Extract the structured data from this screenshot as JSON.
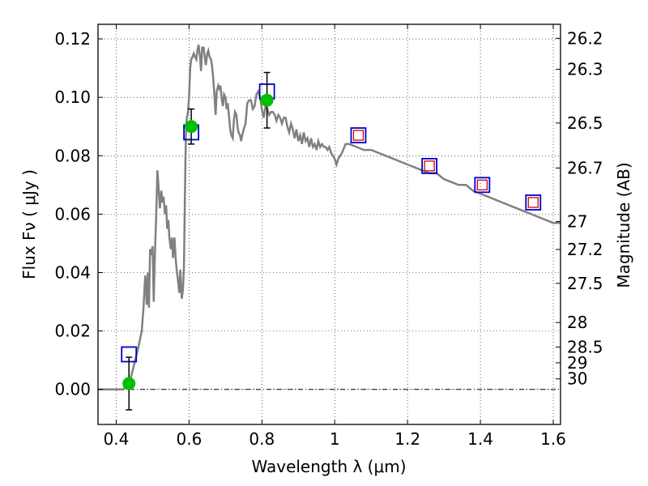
{
  "chart_data": {
    "type": "scatter",
    "xlabel": "Wavelength  λ (μm)",
    "ylabel": "Flux  Fν  ( μJy )",
    "ylabel_right": "Magnitude (AB)",
    "xlim": [
      0.35,
      1.62
    ],
    "ylim": [
      -0.012,
      0.125
    ],
    "grid": true,
    "x_ticks": [
      {
        "value": 0.4,
        "label": "0.4"
      },
      {
        "value": 0.6,
        "label": "0.6"
      },
      {
        "value": 0.8,
        "label": "0.8"
      },
      {
        "value": 1.0,
        "label": "1"
      },
      {
        "value": 1.2,
        "label": "1.2"
      },
      {
        "value": 1.4,
        "label": "1.4"
      },
      {
        "value": 1.6,
        "label": "1.6"
      }
    ],
    "y_ticks": [
      {
        "value": 0.0,
        "label": "0.00"
      },
      {
        "value": 0.02,
        "label": "0.02"
      },
      {
        "value": 0.04,
        "label": "0.04"
      },
      {
        "value": 0.06,
        "label": "0.06"
      },
      {
        "value": 0.08,
        "label": "0.08"
      },
      {
        "value": 0.1,
        "label": "0.10"
      },
      {
        "value": 0.12,
        "label": "0.12"
      }
    ],
    "right_ticks": [
      {
        "label": "26.2",
        "flux": 0.1202
      },
      {
        "label": "26.3",
        "flux": 0.1096
      },
      {
        "label": "26.5",
        "flux": 0.0912
      },
      {
        "label": "26.7",
        "flux": 0.0758
      },
      {
        "label": "27",
        "flux": 0.0575
      },
      {
        "label": "27.2",
        "flux": 0.0479
      },
      {
        "label": "27.5",
        "flux": 0.0363
      },
      {
        "label": "28",
        "flux": 0.0229
      },
      {
        "label": "28.5",
        "flux": 0.0145
      },
      {
        "label": "29",
        "flux": 0.0091
      },
      {
        "label": "30",
        "flux": 0.0036
      }
    ],
    "series": [
      {
        "style": "model-spectrum",
        "color": "#808080",
        "x": [
          0.35,
          0.42,
          0.44,
          0.45,
          0.46,
          0.47,
          0.475,
          0.478,
          0.48,
          0.484,
          0.487,
          0.49,
          0.493,
          0.496,
          0.5,
          0.503,
          0.506,
          0.51,
          0.513,
          0.516,
          0.52,
          0.524,
          0.527,
          0.53,
          0.534,
          0.537,
          0.54,
          0.543,
          0.546,
          0.55,
          0.553,
          0.556,
          0.56,
          0.563,
          0.566,
          0.57,
          0.573,
          0.576,
          0.58,
          0.583,
          0.586,
          0.59,
          0.592,
          0.594,
          0.597,
          0.6,
          0.603,
          0.606,
          0.61,
          0.613,
          0.616,
          0.62,
          0.623,
          0.626,
          0.63,
          0.633,
          0.636,
          0.64,
          0.643,
          0.646,
          0.65,
          0.653,
          0.656,
          0.66,
          0.663,
          0.666,
          0.67,
          0.673,
          0.676,
          0.68,
          0.683,
          0.686,
          0.69,
          0.693,
          0.696,
          0.7,
          0.703,
          0.706,
          0.71,
          0.713,
          0.716,
          0.72,
          0.723,
          0.726,
          0.73,
          0.733,
          0.736,
          0.74,
          0.743,
          0.746,
          0.75,
          0.755,
          0.76,
          0.765,
          0.77,
          0.775,
          0.78,
          0.785,
          0.79,
          0.795,
          0.8,
          0.805,
          0.81,
          0.815,
          0.82,
          0.825,
          0.83,
          0.835,
          0.84,
          0.845,
          0.85,
          0.855,
          0.86,
          0.865,
          0.87,
          0.875,
          0.88,
          0.885,
          0.89,
          0.895,
          0.9,
          0.905,
          0.91,
          0.915,
          0.92,
          0.925,
          0.93,
          0.935,
          0.94,
          0.945,
          0.95,
          0.955,
          0.96,
          0.965,
          0.97,
          0.975,
          0.98,
          0.985,
          0.99,
          0.995,
          1.0,
          1.005,
          1.01,
          1.02,
          1.03,
          1.04,
          1.06,
          1.08,
          1.1,
          1.12,
          1.14,
          1.16,
          1.18,
          1.2,
          1.22,
          1.24,
          1.26,
          1.28,
          1.3,
          1.32,
          1.34,
          1.36,
          1.38,
          1.4,
          1.42,
          1.44,
          1.46,
          1.48,
          1.5,
          1.52,
          1.54,
          1.56,
          1.58,
          1.6,
          1.62
        ],
        "y": [
          0.0,
          0.0,
          0.004,
          0.009,
          0.014,
          0.02,
          0.028,
          0.035,
          0.039,
          0.029,
          0.04,
          0.028,
          0.048,
          0.046,
          0.049,
          0.03,
          0.045,
          0.06,
          0.075,
          0.07,
          0.062,
          0.068,
          0.064,
          0.066,
          0.06,
          0.063,
          0.055,
          0.058,
          0.052,
          0.048,
          0.052,
          0.045,
          0.052,
          0.045,
          0.041,
          0.037,
          0.033,
          0.041,
          0.031,
          0.034,
          0.042,
          0.078,
          0.09,
          0.093,
          0.095,
          0.1,
          0.11,
          0.113,
          0.114,
          0.115,
          0.114,
          0.113,
          0.116,
          0.118,
          0.114,
          0.109,
          0.117,
          0.117,
          0.114,
          0.111,
          0.115,
          0.116,
          0.114,
          0.113,
          0.111,
          0.107,
          0.1,
          0.094,
          0.102,
          0.104,
          0.103,
          0.104,
          0.099,
          0.097,
          0.101,
          0.1,
          0.096,
          0.098,
          0.093,
          0.089,
          0.087,
          0.086,
          0.092,
          0.095,
          0.094,
          0.09,
          0.088,
          0.087,
          0.085,
          0.087,
          0.089,
          0.091,
          0.098,
          0.099,
          0.099,
          0.096,
          0.097,
          0.101,
          0.102,
          0.1,
          0.096,
          0.093,
          0.097,
          0.096,
          0.094,
          0.095,
          0.095,
          0.094,
          0.092,
          0.094,
          0.093,
          0.091,
          0.093,
          0.093,
          0.09,
          0.088,
          0.091,
          0.089,
          0.086,
          0.089,
          0.085,
          0.087,
          0.084,
          0.088,
          0.085,
          0.086,
          0.083,
          0.086,
          0.083,
          0.084,
          0.082,
          0.085,
          0.083,
          0.084,
          0.083,
          0.083,
          0.082,
          0.083,
          0.081,
          0.08,
          0.079,
          0.077,
          0.079,
          0.081,
          0.084,
          0.084,
          0.083,
          0.082,
          0.082,
          0.081,
          0.08,
          0.079,
          0.078,
          0.077,
          0.076,
          0.075,
          0.074,
          0.074,
          0.072,
          0.071,
          0.07,
          0.07,
          0.068,
          0.067,
          0.066,
          0.065,
          0.064,
          0.063,
          0.062,
          0.061,
          0.06,
          0.059,
          0.058,
          0.057,
          0.057
        ]
      },
      {
        "style": "observed-points",
        "color": "#00c000",
        "x": [
          0.435,
          0.606,
          0.814
        ],
        "y": [
          0.002,
          0.09,
          0.099
        ],
        "yerr": [
          0.009,
          0.006,
          0.0095
        ]
      },
      {
        "style": "model-photometry-squares",
        "color": "#0000cc",
        "x": [
          0.435,
          0.606,
          0.814,
          1.065,
          1.26,
          1.405,
          1.545
        ],
        "y": [
          0.012,
          0.088,
          0.102,
          0.087,
          0.0765,
          0.07,
          0.064
        ]
      },
      {
        "style": "model-photometry-inner-squares",
        "color": "#cc0000",
        "x": [
          1.065,
          1.26,
          1.405,
          1.545
        ],
        "y": [
          0.087,
          0.0765,
          0.07,
          0.064
        ]
      }
    ]
  }
}
